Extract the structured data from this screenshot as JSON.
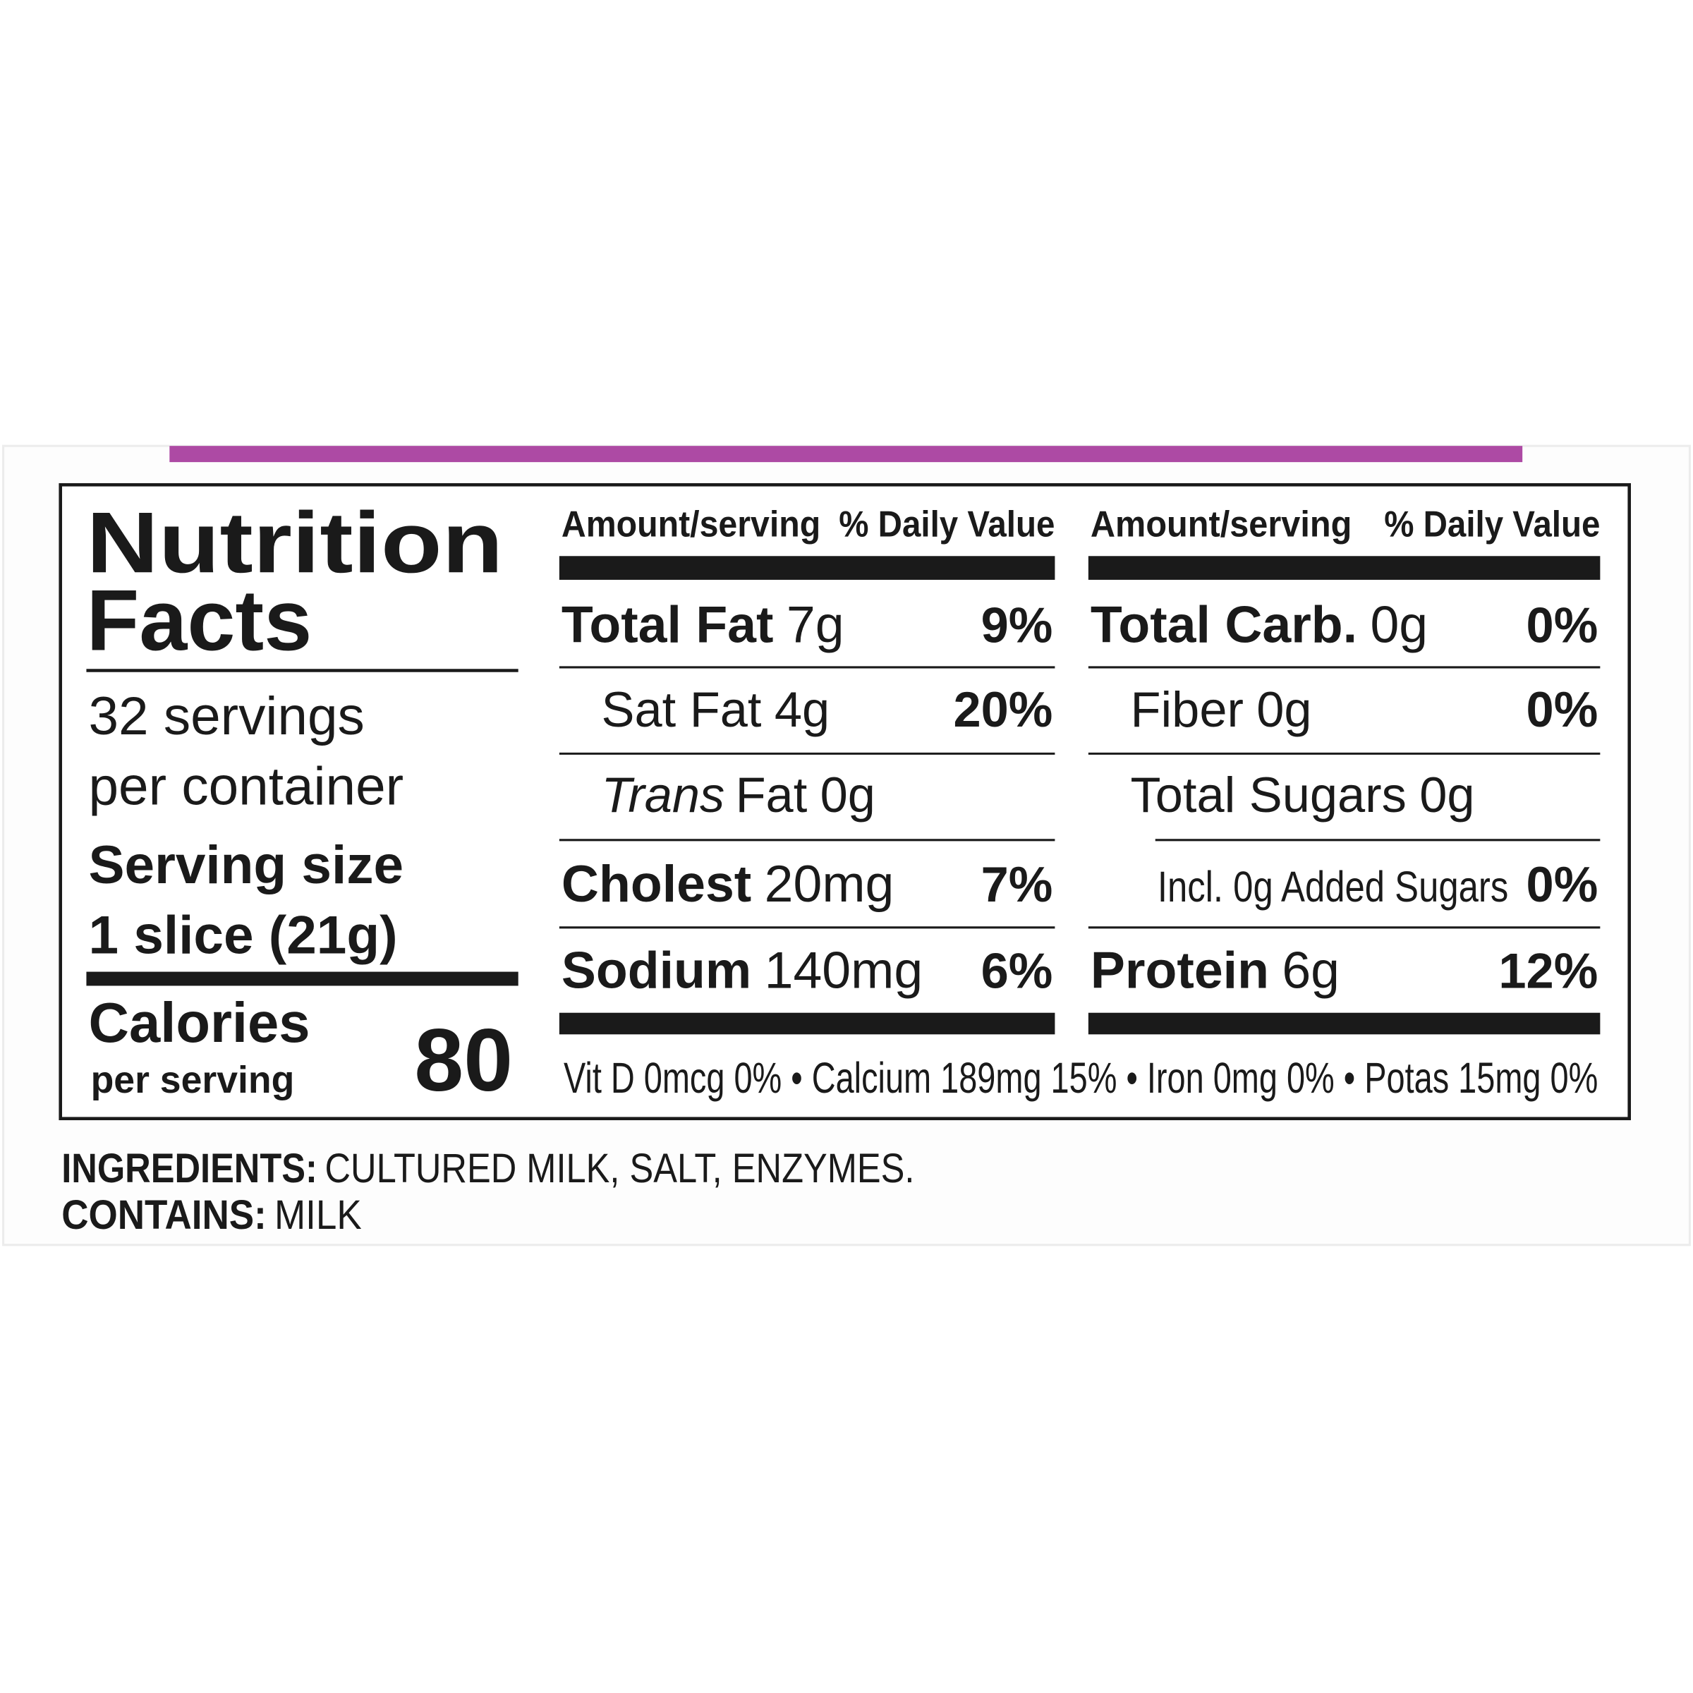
{
  "title": [
    "Nutrition",
    "Facts"
  ],
  "servings": [
    "32 servings",
    "per container"
  ],
  "serving_size": {
    "label": "Serving size",
    "value": "1 slice (21g)"
  },
  "calories": {
    "label": "Calories",
    "sublabel": "per serving",
    "value": "80"
  },
  "columns": [
    {
      "header_amount": "Amount/serving",
      "header_dv": "% Daily Value",
      "rows": [
        {
          "name": "Total Fat",
          "amount": "7g",
          "dv": "9%"
        },
        {
          "name": "Sat Fat",
          "amount": "4g",
          "dv": "20%"
        },
        {
          "name_italic": "Trans",
          "name": "Fat",
          "amount": "0g"
        },
        {
          "name": "Cholest",
          "amount": "20mg",
          "dv": "7%"
        },
        {
          "name": "Sodium",
          "amount": "140mg",
          "dv": "6%"
        }
      ]
    },
    {
      "header_amount": "Amount/serving",
      "header_dv": "% Daily Value",
      "rows": [
        {
          "name": "Total Carb.",
          "amount": "0g",
          "dv": "0%"
        },
        {
          "name": "Fiber",
          "amount": "0g",
          "dv": "0%"
        },
        {
          "name": "Total Sugars",
          "amount": "0g"
        },
        {
          "name": "Incl. 0g Added Sugars",
          "dv": "0%"
        },
        {
          "name": "Protein",
          "amount": "6g",
          "dv": "12%"
        }
      ]
    }
  ],
  "vitamins": "Vit D 0mcg 0% • Calcium 189mg 15% • Iron 0mg 0% • Potas 15mg 0%",
  "ingredients": {
    "label": "INGREDIENTS:",
    "text": "CULTURED MILK, SALT, ENZYMES."
  },
  "contains": {
    "label": "CONTAINS:",
    "text": "MILK"
  }
}
